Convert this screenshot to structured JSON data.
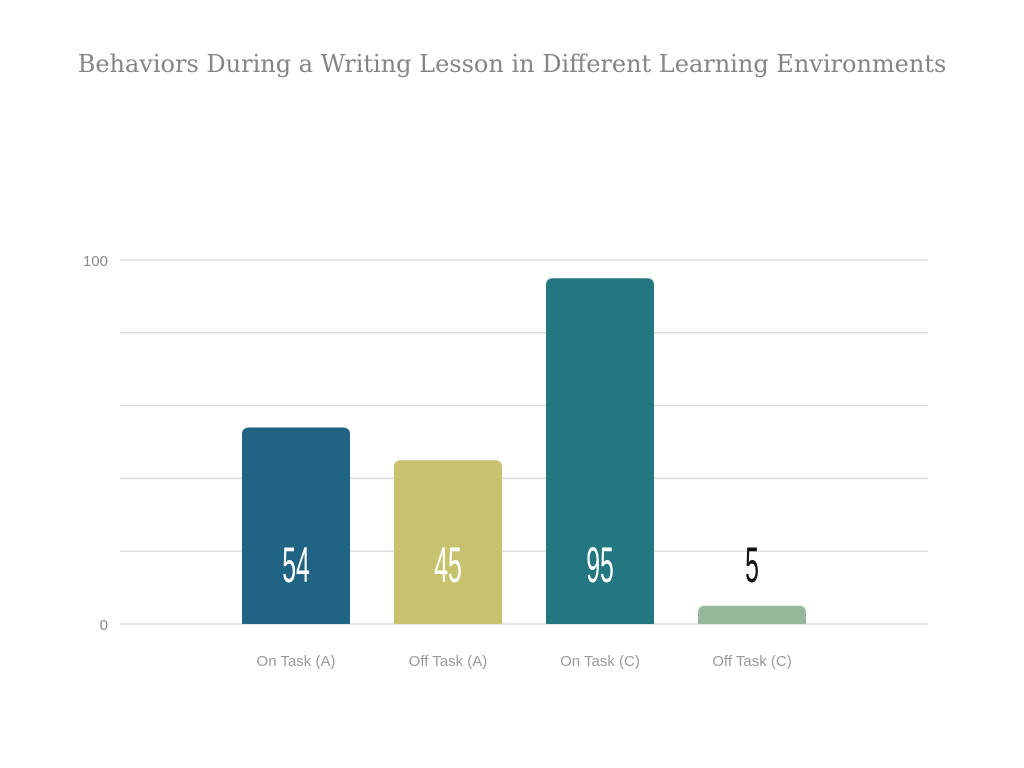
{
  "chart_data": {
    "type": "bar",
    "title": "Behaviors During a Writing Lesson in Different Learning Environments",
    "xlabel": "",
    "ylabel": "",
    "categories": [
      "On Task (A)",
      "Off Task (A)",
      "On Task (C)",
      "Off Task (C)"
    ],
    "values": [
      54,
      45,
      95,
      5
    ],
    "data_labels": [
      "54",
      "45",
      "95",
      "5"
    ],
    "colors": [
      "#216383",
      "#c8c26e",
      "#237780",
      "#95b89a"
    ],
    "label_colors": [
      "#ffffff",
      "#ffffff",
      "#ffffff",
      "#111111"
    ],
    "ylim": [
      0,
      100
    ],
    "y_tick_labels": [
      "0",
      "100"
    ],
    "grid": true,
    "legend": "none"
  }
}
